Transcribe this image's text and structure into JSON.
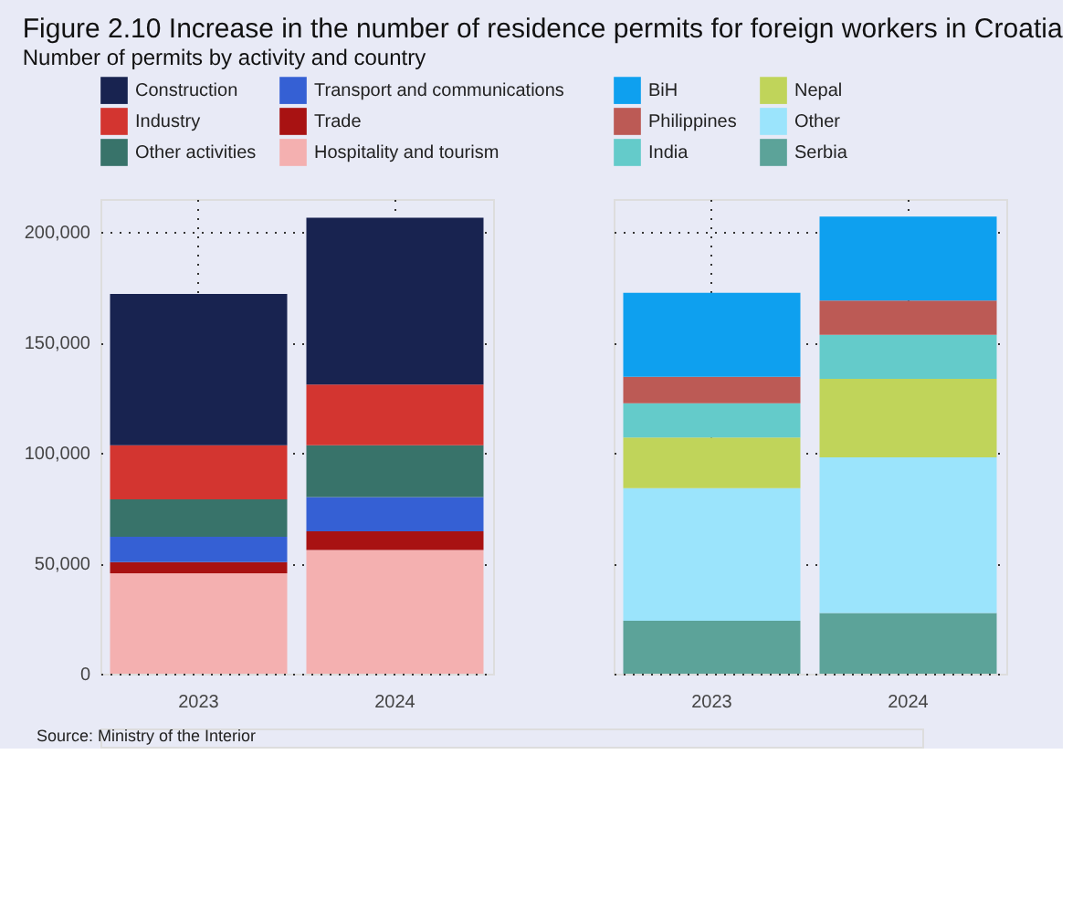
{
  "chart_data": [
    {
      "type": "bar",
      "title": "Figure 2.10 Increase in the number of residence permits for foreign workers in Croatia",
      "subtitle": "Number of permits by activity and country",
      "annotations": [
        "Source: Ministry of the Interior"
      ],
      "stacked": true,
      "categories": [
        "2023",
        "2024"
      ],
      "series": [
        {
          "name": "Hospitality and tourism",
          "color": "#f4b0b0",
          "values": [
            45500,
            56000
          ]
        },
        {
          "name": "Trade",
          "color": "#a81212",
          "values": [
            5000,
            8500
          ]
        },
        {
          "name": "Transport and communications",
          "color": "#3560d4",
          "values": [
            11500,
            15500
          ]
        },
        {
          "name": "Other activities",
          "color": "#38736a",
          "values": [
            17000,
            23500
          ]
        },
        {
          "name": "Industry",
          "color": "#d33530",
          "values": [
            24500,
            27500
          ]
        },
        {
          "name": "Construction",
          "color": "#182350",
          "values": [
            68500,
            75500
          ]
        }
      ],
      "ylim": [
        0,
        215000
      ],
      "yticks": [
        {
          "value": 0,
          "label": "0"
        },
        {
          "value": 50000,
          "label": "50,000"
        },
        {
          "value": 100000,
          "label": "100,000"
        },
        {
          "value": 150000,
          "label": "150,000"
        },
        {
          "value": 200000,
          "label": "200,000"
        }
      ],
      "grid": true,
      "legend": "top"
    },
    {
      "type": "bar",
      "stacked": true,
      "categories": [
        "2023",
        "2024"
      ],
      "series": [
        {
          "name": "Serbia",
          "color": "#5ca399",
          "values": [
            24000,
            27500
          ]
        },
        {
          "name": "Other",
          "color": "#9be4fc",
          "values": [
            60000,
            70500
          ]
        },
        {
          "name": "Nepal",
          "color": "#c0d45a",
          "values": [
            23000,
            35500
          ]
        },
        {
          "name": "India",
          "color": "#64cbca",
          "values": [
            15500,
            20000
          ]
        },
        {
          "name": "Philippines",
          "color": "#bc5a55",
          "values": [
            12000,
            15500
          ]
        },
        {
          "name": "BiH",
          "color": "#0ea0ef",
          "values": [
            38000,
            38000
          ]
        }
      ],
      "ylim": [
        0,
        215000
      ],
      "yticks": [
        0,
        50000,
        100000,
        150000,
        200000
      ],
      "grid": true,
      "legend": "top",
      "tick_labels": "x"
    }
  ]
}
